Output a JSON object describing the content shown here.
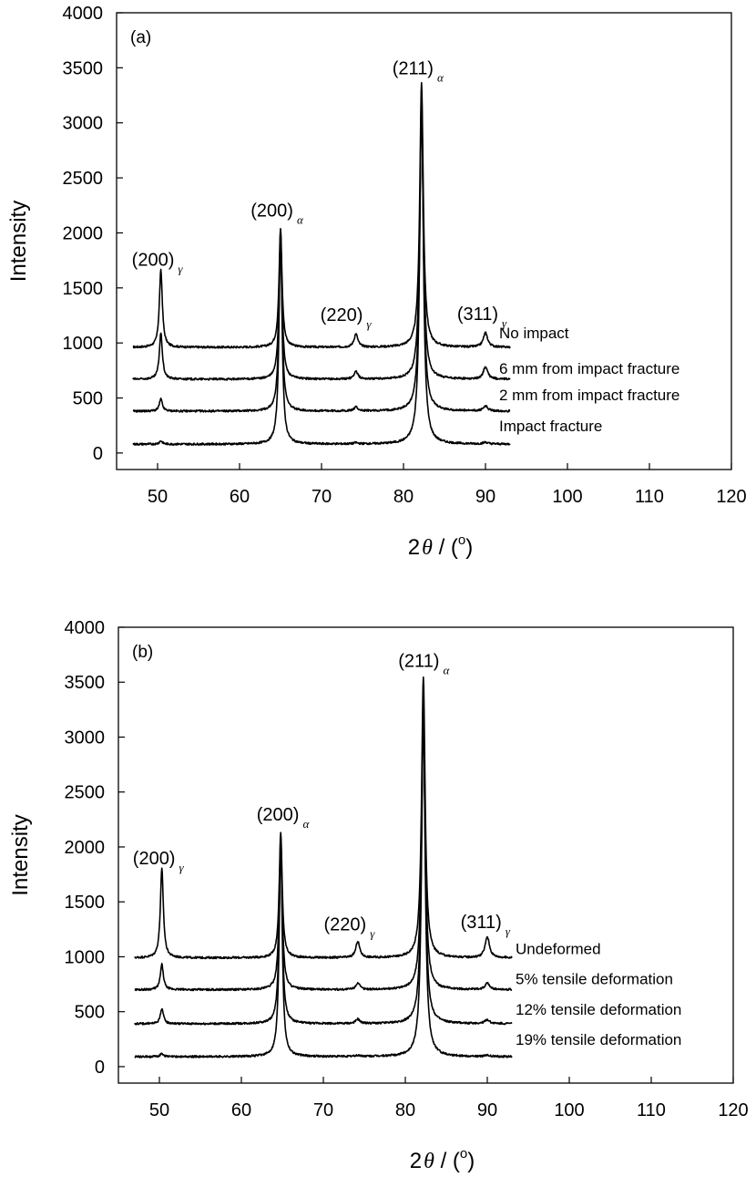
{
  "chart_data": [
    {
      "type": "line",
      "panel": "(a)",
      "xlabel": {
        "main": "2",
        "theta": "θ",
        "sep": " / (",
        "deg": "o",
        "close": ")"
      },
      "ylabel": "Intensity",
      "xlim": [
        45,
        120
      ],
      "ylim": [
        -150,
        4000
      ],
      "x_ticks": [
        50,
        60,
        70,
        80,
        90,
        100,
        110,
        120
      ],
      "y_ticks": [
        0,
        500,
        1000,
        1500,
        2000,
        2500,
        3000,
        3500,
        4000
      ],
      "x_range": [
        47,
        93
      ],
      "peaks": [
        {
          "label": "(200)",
          "sub": "γ",
          "x": 50.4,
          "label_x": 50.4,
          "label_y": 1700
        },
        {
          "label": "(200)",
          "sub": "α",
          "x": 65.0,
          "label_x": 65.0,
          "label_y": 2150
        },
        {
          "label": "(220)",
          "sub": "γ",
          "x": 74.2,
          "label_x": 73.4,
          "label_y": 1200
        },
        {
          "label": "(211)",
          "sub": "α",
          "x": 82.2,
          "label_x": 82.2,
          "label_y": 3440
        },
        {
          "label": "(311)",
          "sub": "γ",
          "x": 90.0,
          "label_x": 90.0,
          "label_y": 1210
        }
      ],
      "series": [
        {
          "name": "No impact",
          "baseline": 960,
          "heights": [
            700,
            1080,
            120,
            2400,
            130
          ]
        },
        {
          "name": "6 mm from impact fracture",
          "baseline": 670,
          "heights": [
            420,
            1330,
            70,
            2480,
            110
          ]
        },
        {
          "name": "2 mm from impact fracture",
          "baseline": 380,
          "heights": [
            110,
            1640,
            35,
            2790,
            45
          ]
        },
        {
          "name": "Impact fracture",
          "baseline": 80,
          "heights": [
            30,
            1950,
            10,
            3220,
            15
          ]
        }
      ]
    },
    {
      "type": "line",
      "panel": "(b)",
      "xlabel": {
        "main": "2",
        "theta": "θ",
        "sep": " / (",
        "deg": "o",
        "close": ")"
      },
      "ylabel": "Intensity",
      "xlim": [
        45,
        120
      ],
      "ylim": [
        -150,
        4000
      ],
      "x_ticks": [
        50,
        60,
        70,
        80,
        90,
        100,
        110,
        120
      ],
      "y_ticks": [
        0,
        500,
        1000,
        1500,
        2000,
        2500,
        3000,
        3500,
        4000
      ],
      "x_range": [
        47,
        93
      ],
      "peaks": [
        {
          "label": "(200)",
          "sub": "γ",
          "x": 50.3,
          "label_x": 50.3,
          "label_y": 1840
        },
        {
          "label": "(200)",
          "sub": "α",
          "x": 64.8,
          "label_x": 65.5,
          "label_y": 2240
        },
        {
          "label": "(220)",
          "sub": "γ",
          "x": 74.2,
          "label_x": 73.6,
          "label_y": 1240
        },
        {
          "label": "(211)",
          "sub": "α",
          "x": 82.2,
          "label_x": 82.7,
          "label_y": 3640
        },
        {
          "label": "(311)",
          "sub": "γ",
          "x": 90.0,
          "label_x": 90.2,
          "label_y": 1260
        }
      ],
      "series": [
        {
          "name": "Undeformed",
          "baseline": 990,
          "heights": [
            810,
            1140,
            150,
            2560,
            190
          ]
        },
        {
          "name": "5% tensile deformation",
          "baseline": 700,
          "heights": [
            230,
            1390,
            60,
            2590,
            60
          ]
        },
        {
          "name": "12% tensile deformation",
          "baseline": 390,
          "heights": [
            140,
            1660,
            40,
            2860,
            35
          ]
        },
        {
          "name": "19% tensile deformation",
          "baseline": 90,
          "heights": [
            30,
            1990,
            10,
            3140,
            10
          ]
        }
      ]
    }
  ]
}
